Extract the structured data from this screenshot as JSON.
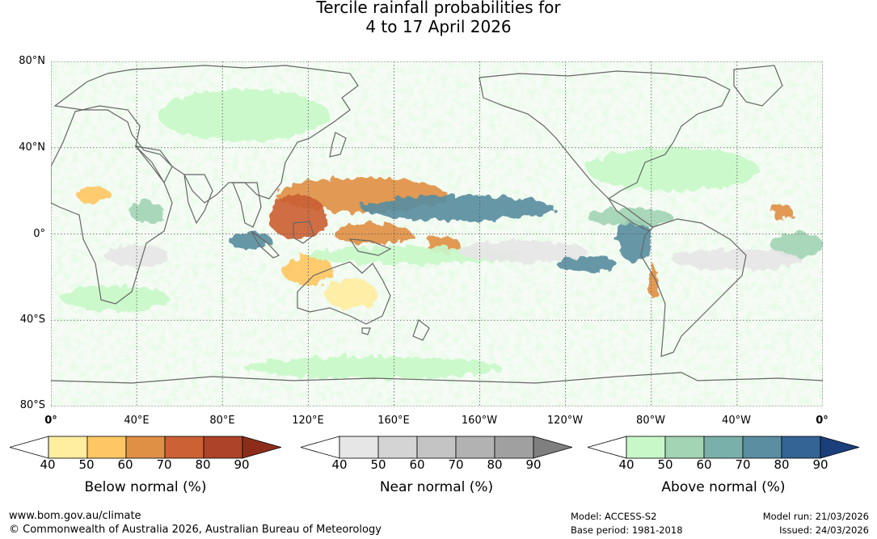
{
  "title": {
    "line1": "Tercile rainfall probabilities for",
    "line2": "4 to 17 April 2026"
  },
  "map": {
    "latitude_labels": [
      "80°N",
      "40°N",
      "0°",
      "40°S",
      "80°S"
    ],
    "longitude_labels": [
      "0°",
      "40°E",
      "80°E",
      "120°E",
      "160°E",
      "160°W",
      "120°W",
      "80°W",
      "40°W",
      "0°"
    ],
    "anomaly_regions": [
      {
        "category": "below",
        "level": 70,
        "lon": 145,
        "lat": 18,
        "w": 40,
        "h": 8
      },
      {
        "category": "below",
        "level": 80,
        "lon": 115,
        "lat": 8,
        "w": 14,
        "h": 10
      },
      {
        "category": "below",
        "level": 70,
        "lon": 150,
        "lat": 0,
        "w": 18,
        "h": 5
      },
      {
        "category": "below",
        "level": 70,
        "lon": 183,
        "lat": -5,
        "w": 8,
        "h": 4
      },
      {
        "category": "below",
        "level": 60,
        "lon": 120,
        "lat": -17,
        "w": 12,
        "h": 7
      },
      {
        "category": "below",
        "level": 50,
        "lon": 140,
        "lat": -28,
        "w": 12,
        "h": 7
      },
      {
        "category": "below",
        "level": 60,
        "lon": 20,
        "lat": 18,
        "w": 8,
        "h": 4
      },
      {
        "category": "below",
        "level": 70,
        "lon": 341,
        "lat": 10,
        "w": 5,
        "h": 4
      },
      {
        "category": "below",
        "level": 70,
        "lon": 281,
        "lat": -22,
        "w": 2,
        "h": 8
      },
      {
        "category": "above",
        "level": 80,
        "lon": 190,
        "lat": 12,
        "w": 45,
        "h": 6
      },
      {
        "category": "above",
        "level": 80,
        "lon": 93,
        "lat": -3,
        "w": 10,
        "h": 4
      },
      {
        "category": "above",
        "level": 80,
        "lon": 272,
        "lat": -3,
        "w": 8,
        "h": 10
      },
      {
        "category": "above",
        "level": 80,
        "lon": 250,
        "lat": -14,
        "w": 14,
        "h": 4
      },
      {
        "category": "above",
        "level": 60,
        "lon": 45,
        "lat": 10,
        "w": 8,
        "h": 5
      },
      {
        "category": "above",
        "level": 60,
        "lon": 270,
        "lat": 8,
        "w": 20,
        "h": 4
      },
      {
        "category": "above",
        "level": 50,
        "lon": 170,
        "lat": -10,
        "w": 50,
        "h": 4
      },
      {
        "category": "above",
        "level": 50,
        "lon": 90,
        "lat": 55,
        "w": 40,
        "h": 12
      },
      {
        "category": "above",
        "level": 50,
        "lon": 30,
        "lat": -30,
        "w": 25,
        "h": 6
      },
      {
        "category": "above",
        "level": 50,
        "lon": 150,
        "lat": -62,
        "w": 60,
        "h": 5
      },
      {
        "category": "above",
        "level": 50,
        "lon": 290,
        "lat": 30,
        "w": 40,
        "h": 10
      },
      {
        "category": "above",
        "level": 60,
        "lon": 348,
        "lat": -5,
        "w": 12,
        "h": 6
      },
      {
        "category": "near",
        "level": 50,
        "lon": 220,
        "lat": -8,
        "w": 30,
        "h": 5
      },
      {
        "category": "near",
        "level": 50,
        "lon": 40,
        "lat": -10,
        "w": 15,
        "h": 5
      },
      {
        "category": "near",
        "level": 50,
        "lon": 320,
        "lat": -12,
        "w": 30,
        "h": 5
      }
    ]
  },
  "legends": [
    {
      "title": "Below normal (%)",
      "ticks": [
        "40",
        "50",
        "60",
        "70",
        "80",
        "90"
      ],
      "colors": [
        "#ffffff",
        "#ffeda0",
        "#fec763",
        "#e09045",
        "#cc6133",
        "#ad4327",
        "#8c2d1c"
      ]
    },
    {
      "title": "Near normal (%)",
      "ticks": [
        "40",
        "50",
        "60",
        "70",
        "80",
        "90"
      ],
      "colors": [
        "#ffffff",
        "#e6e6e6",
        "#d4d4d4",
        "#c4c4c4",
        "#b2b2b2",
        "#a0a0a0",
        "#7f7f7f"
      ]
    },
    {
      "title": "Above normal (%)",
      "ticks": [
        "40",
        "50",
        "60",
        "70",
        "80",
        "90"
      ],
      "colors": [
        "#ffffff",
        "#c8f8c8",
        "#a3d4b4",
        "#7ab0aa",
        "#5a8ea0",
        "#336495",
        "#1a3f7a"
      ]
    }
  ],
  "footer": {
    "website": "www.bom.gov.au/climate",
    "copyright": "© Commonwealth of Australia 2026, Australian Bureau of Meteorology",
    "model": "Model: ACCESS-S2",
    "base_period": "Base period: 1981-2018",
    "model_run": "Model run: 21/03/2026",
    "issued": "Issued: 24/03/2026"
  },
  "colors": {
    "coast": "#666666",
    "grid": "#555555",
    "neutral_bg": "#f4fbf3"
  }
}
